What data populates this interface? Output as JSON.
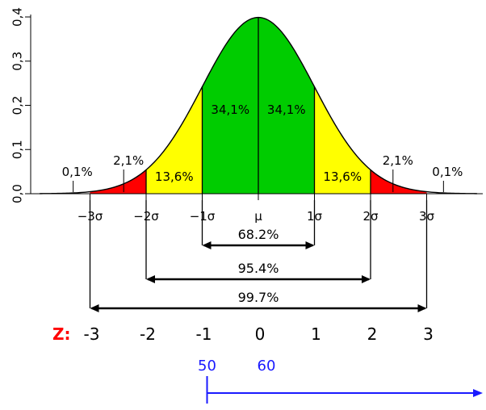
{
  "colors": {
    "center": "#00cc00",
    "middle": "#ffff00",
    "outer": "#ff0000",
    "curve": "#000000",
    "z_label": "#ff0000",
    "blue_annotation": "#1a1aff"
  },
  "chart_data": {
    "type": "area",
    "distribution": "normal",
    "x_domain": [
      -3.9,
      3.9
    ],
    "ylim": [
      0,
      0.4
    ],
    "yticks": [
      "0,0",
      "0,1",
      "0,2",
      "0,3",
      "0,4"
    ],
    "ytick_values": [
      0,
      0.1,
      0.2,
      0.3,
      0.4
    ],
    "xticks": [
      {
        "value": -3,
        "label": "−3σ"
      },
      {
        "value": -2,
        "label": "−2σ"
      },
      {
        "value": -1,
        "label": "−1σ"
      },
      {
        "value": 0,
        "label": "μ"
      },
      {
        "value": 1,
        "label": "1σ"
      },
      {
        "value": 2,
        "label": "2σ"
      },
      {
        "value": 3,
        "label": "3σ"
      }
    ],
    "regions": [
      {
        "from": -3,
        "to": -2,
        "color_key": "outer"
      },
      {
        "from": -2,
        "to": -1,
        "color_key": "middle"
      },
      {
        "from": -1,
        "to": 1,
        "color_key": "center"
      },
      {
        "from": 1,
        "to": 2,
        "color_key": "middle"
      },
      {
        "from": 2,
        "to": 3,
        "color_key": "outer"
      }
    ],
    "vertical_lines": [
      -2,
      -1,
      0,
      1,
      2
    ],
    "region_labels": [
      {
        "x": -0.5,
        "y": 0.19,
        "text": "34,1%"
      },
      {
        "x": 0.5,
        "y": 0.19,
        "text": "34,1%"
      },
      {
        "x": -1.5,
        "y": 0.038,
        "text": "13,6%"
      },
      {
        "x": 1.5,
        "y": 0.038,
        "text": "13,6%"
      }
    ],
    "callouts": [
      {
        "target_x": -2.4,
        "label_x": -2.4,
        "text": "2,1%"
      },
      {
        "target_x": 2.4,
        "label_x": 2.4,
        "text": "2,1%"
      },
      {
        "target_x": -3.3,
        "label_x": -3.3,
        "text": "0,1%"
      },
      {
        "target_x": 3.3,
        "label_x": 3.3,
        "text": "0,1%"
      }
    ],
    "ranges": [
      {
        "from": -1,
        "to": 1,
        "text": "68.2%"
      },
      {
        "from": -2,
        "to": 2,
        "text": "95.4%"
      },
      {
        "from": -3,
        "to": 3,
        "text": "99.7%"
      }
    ],
    "z_row": {
      "label": "Z:",
      "values": [
        {
          "value": -3,
          "text": "-3"
        },
        {
          "value": -2,
          "text": "-2"
        },
        {
          "value": -1,
          "text": "-1"
        },
        {
          "value": 0,
          "text": "0"
        },
        {
          "value": 1,
          "text": "1"
        },
        {
          "value": 2,
          "text": "2"
        },
        {
          "value": 3,
          "text": "3"
        }
      ]
    },
    "annotation": {
      "start_z": -1,
      "labels": [
        {
          "z": -1,
          "text": "50"
        },
        {
          "z": 0,
          "text": "60"
        }
      ]
    }
  }
}
